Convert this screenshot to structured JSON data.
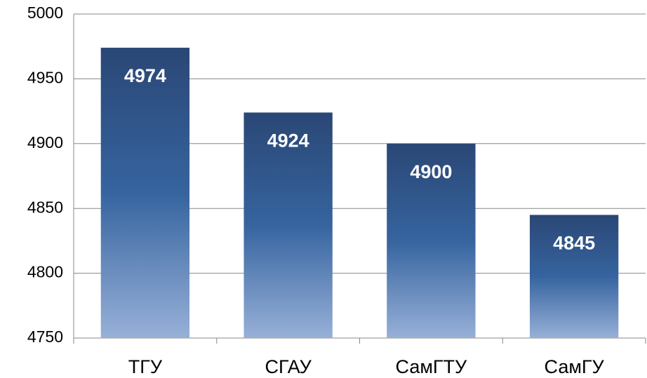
{
  "chart_data": {
    "type": "bar",
    "categories": [
      "ТГУ",
      "СГАУ",
      "СамГТУ",
      "СамГУ"
    ],
    "values": [
      4974,
      4924,
      4900,
      4845
    ],
    "color": "#36649f",
    "ylim": [
      4750,
      5000
    ],
    "yticks": [
      4750,
      4800,
      4850,
      4900,
      4950,
      5000
    ],
    "grid": true
  }
}
